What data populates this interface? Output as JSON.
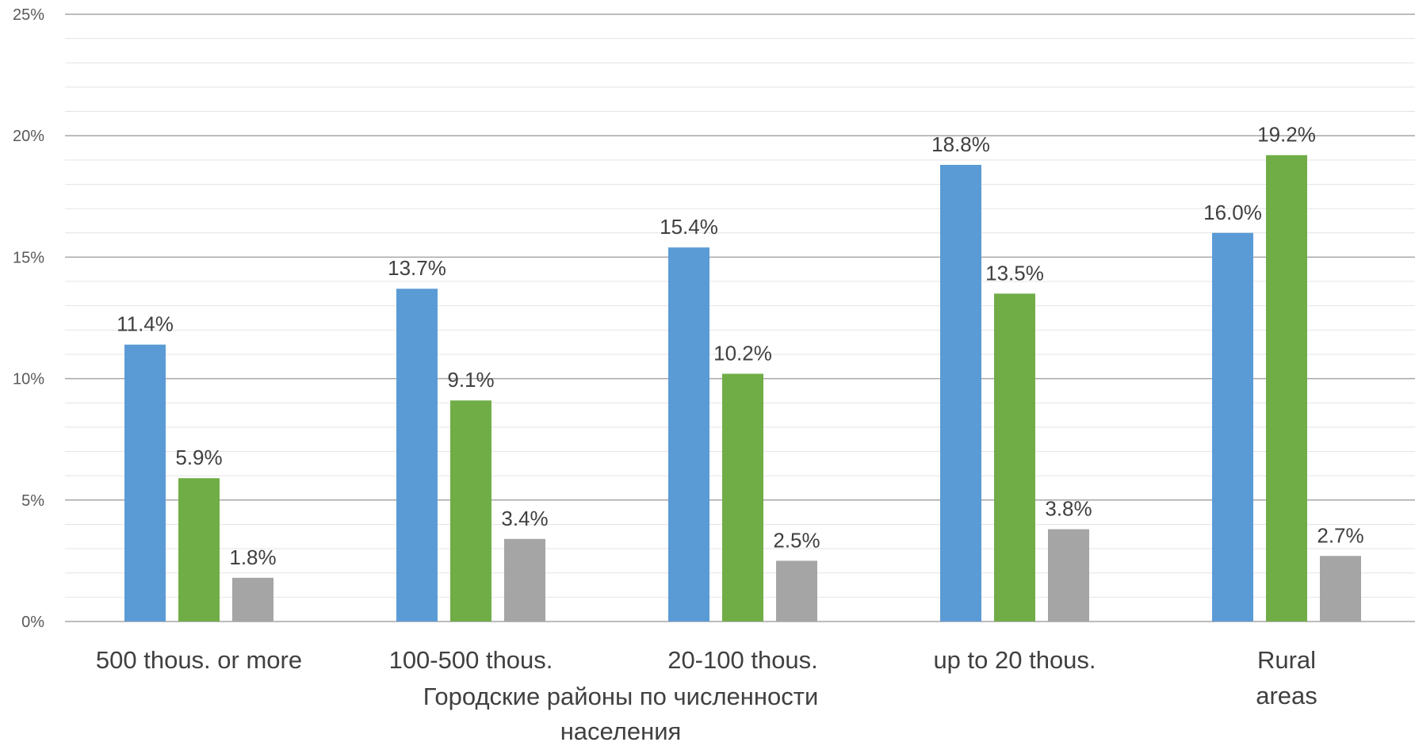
{
  "chart_data": {
    "type": "bar",
    "categories": [
      [
        "500 thous. or more"
      ],
      [
        "100-500 thous."
      ],
      [
        "20-100 thous."
      ],
      [
        "up to 20 thous."
      ],
      [
        "Rural",
        "areas"
      ]
    ],
    "series": [
      {
        "color": "#5b9bd5",
        "values": [
          11.4,
          13.7,
          15.4,
          18.8,
          16.0
        ]
      },
      {
        "color": "#70ad47",
        "values": [
          5.9,
          9.1,
          10.2,
          13.5,
          19.2
        ]
      },
      {
        "color": "#a5a5a5",
        "values": [
          1.8,
          3.4,
          2.5,
          3.8,
          2.7
        ]
      }
    ],
    "ylim": [
      0,
      25
    ],
    "yticks": [
      0,
      5,
      10,
      15,
      20,
      25
    ],
    "ytick_labels": [
      "0%",
      "5%",
      "10%",
      "15%",
      "20%",
      "25%"
    ],
    "value_suffix": "%",
    "xlabel": [
      "Городские районы по численности",
      "населения"
    ],
    "ylabel": "",
    "grid": true,
    "legend": false,
    "major_grid_color": "#a6a6a6",
    "minor_grid_color": "#e4e4e4"
  }
}
